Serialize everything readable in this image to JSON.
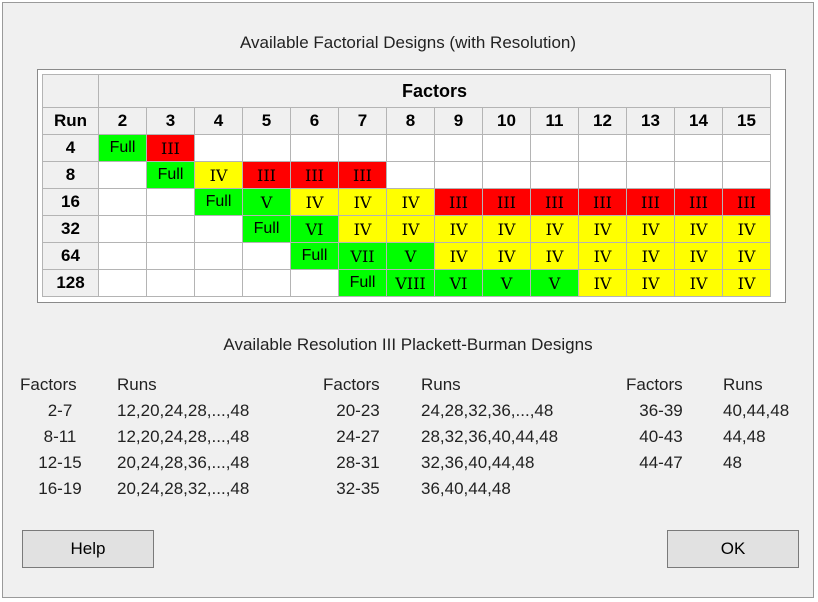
{
  "dialog": {
    "title": "Available Factorial Designs (with Resolution)",
    "pb_title": "Available Resolution III Plackett-Burman Designs"
  },
  "grid": {
    "factors_label": "Factors",
    "run_label": "Run",
    "factors": [
      "2",
      "3",
      "4",
      "5",
      "6",
      "7",
      "8",
      "9",
      "10",
      "11",
      "12",
      "13",
      "14",
      "15"
    ],
    "rows": [
      {
        "run": "4",
        "cells": [
          "Full",
          "III",
          "",
          "",
          "",
          "",
          "",
          "",
          "",
          "",
          "",
          "",
          "",
          ""
        ]
      },
      {
        "run": "8",
        "cells": [
          "",
          "Full",
          "IV",
          "III",
          "III",
          "III",
          "",
          "",
          "",
          "",
          "",
          "",
          "",
          ""
        ]
      },
      {
        "run": "16",
        "cells": [
          "",
          "",
          "Full",
          "V",
          "IV",
          "IV",
          "IV",
          "III",
          "III",
          "III",
          "III",
          "III",
          "III",
          "III"
        ]
      },
      {
        "run": "32",
        "cells": [
          "",
          "",
          "",
          "Full",
          "VI",
          "IV",
          "IV",
          "IV",
          "IV",
          "IV",
          "IV",
          "IV",
          "IV",
          "IV"
        ]
      },
      {
        "run": "64",
        "cells": [
          "",
          "",
          "",
          "",
          "Full",
          "VII",
          "V",
          "IV",
          "IV",
          "IV",
          "IV",
          "IV",
          "IV",
          "IV"
        ]
      },
      {
        "run": "128",
        "cells": [
          "",
          "",
          "",
          "",
          "",
          "Full",
          "VIII",
          "VI",
          "V",
          "V",
          "IV",
          "IV",
          "IV",
          "IV"
        ]
      }
    ],
    "colors": {
      "full": "#00ff00",
      "high": "#00ff00",
      "mid": "#ffff00",
      "low": "#ff0000"
    }
  },
  "pb": {
    "factors_header": "Factors",
    "runs_header": "Runs",
    "columns": [
      [
        {
          "factors": "2-7",
          "runs": "12,20,24,28,...,48"
        },
        {
          "factors": "8-11",
          "runs": "12,20,24,28,...,48"
        },
        {
          "factors": "12-15",
          "runs": "20,24,28,36,...,48"
        },
        {
          "factors": "16-19",
          "runs": "20,24,28,32,...,48"
        }
      ],
      [
        {
          "factors": "20-23",
          "runs": "24,28,32,36,...,48"
        },
        {
          "factors": "24-27",
          "runs": "28,32,36,40,44,48"
        },
        {
          "factors": "28-31",
          "runs": "32,36,40,44,48"
        },
        {
          "factors": "32-35",
          "runs": "36,40,44,48"
        }
      ],
      [
        {
          "factors": "36-39",
          "runs": "40,44,48"
        },
        {
          "factors": "40-43",
          "runs": "44,48"
        },
        {
          "factors": "44-47",
          "runs": "48"
        }
      ]
    ]
  },
  "buttons": {
    "help_label": "Help",
    "ok_label": "OK"
  }
}
